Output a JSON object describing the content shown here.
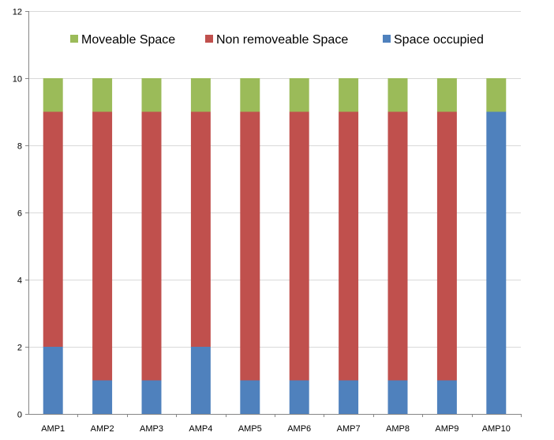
{
  "chart_data": {
    "type": "bar",
    "stacked": true,
    "categories": [
      "AMP1",
      "AMP2",
      "AMP3",
      "AMP4",
      "AMP5",
      "AMP6",
      "AMP7",
      "AMP8",
      "AMP9",
      "AMP10"
    ],
    "series": [
      {
        "name": "Space occupied",
        "color": "#4F81BD",
        "values": [
          2,
          1,
          1,
          2,
          1,
          1,
          1,
          1,
          1,
          9
        ]
      },
      {
        "name": "Non removeable Space",
        "color": "#C0504D",
        "values": [
          7,
          8,
          8,
          7,
          8,
          8,
          8,
          8,
          8,
          0
        ]
      },
      {
        "name": "Moveable Space",
        "color": "#9BBB59",
        "values": [
          1,
          1,
          1,
          1,
          1,
          1,
          1,
          1,
          1,
          1
        ]
      }
    ],
    "legend_order": [
      "Moveable Space",
      "Non removeable Space",
      "Space occupied"
    ],
    "legend_position": "top",
    "ylim": [
      0,
      12
    ],
    "yticks": [
      "0",
      "2",
      "4",
      "6",
      "8",
      "10",
      "12"
    ],
    "grid": true,
    "title": "",
    "xlabel": "",
    "ylabel": ""
  }
}
